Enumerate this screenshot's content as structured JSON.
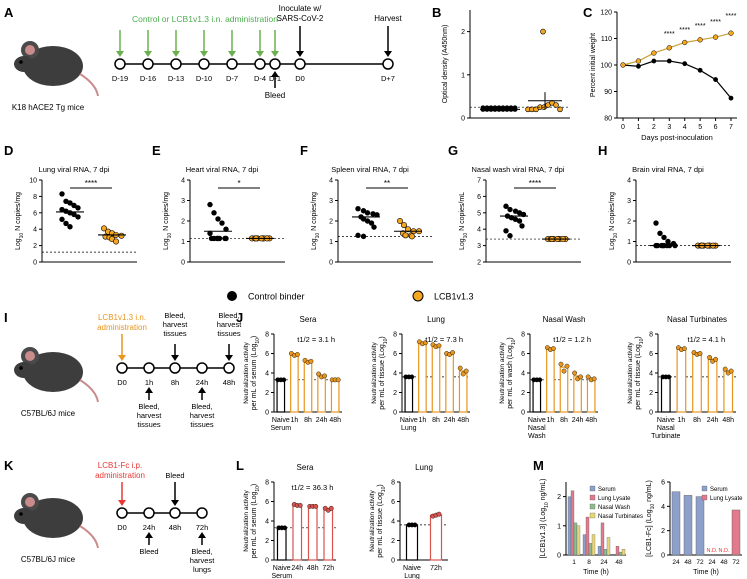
{
  "colors": {
    "black": "#000000",
    "orange": "#f5a623",
    "orange_bar": "#e8961e",
    "gold": "#c8a032",
    "green_arrow": "#6ab04c",
    "green_text": "#4caf50",
    "red_arrow": "#e53935",
    "red_bar": "#d9534f",
    "grid_gray": "#888888",
    "serum_blue": "#8da0cb",
    "lung_red": "#e07a8c",
    "nasal_green": "#8fbc8f",
    "turbinate_yellow": "#e6d77a"
  },
  "panelA": {
    "letter": "A",
    "mouse_label": "K18 hACE2 Tg mice",
    "treatment": "Control or LCB1v1.3 i.n. administration",
    "inoculate": "Inoculate w/ SARS-CoV-2",
    "inoculate_l1": "Inoculate w/",
    "inoculate_l2": "SARS-CoV-2",
    "harvest": "Harvest",
    "bleed": "Bleed",
    "days": [
      "D-19",
      "D-16",
      "D-13",
      "D-10",
      "D-7",
      "D-4",
      "D-1",
      "D0",
      "D+7"
    ]
  },
  "panelI": {
    "letter": "I",
    "mouse_label": "C57BL/6J mice",
    "treat_l1": "LCB1v1.3 i.n.",
    "treat_l2": "administration",
    "above": [
      {
        "l1": "Bleed,",
        "l2": "harvest",
        "l3": "tissues"
      },
      {
        "l1": "Bleed,",
        "l2": "harvest",
        "l3": "tissues"
      }
    ],
    "below": [
      {
        "l1": "Bleed,",
        "l2": "harvest",
        "l3": "tissues"
      },
      {
        "l1": "Bleed,",
        "l2": "harvest",
        "l3": "tissues"
      }
    ],
    "times": [
      "D0",
      "1h",
      "8h",
      "24h",
      "48h"
    ]
  },
  "panelK": {
    "letter": "K",
    "mouse_label": "C57BL/6J mice",
    "treat_l1": "LCB1-Fc i.p.",
    "treat_l2": "administration",
    "bleed_above": "Bleed",
    "bleed_below": "Bleed",
    "final_l1": "Bleed,",
    "final_l2": "harvest",
    "final_l3": "lungs",
    "times": [
      "D0",
      "24h",
      "48h",
      "72h"
    ]
  },
  "legend": {
    "control": "Control binder",
    "lcb": "LCB1v1.3"
  },
  "chart_data": [
    {
      "id": "B",
      "type": "scatter",
      "title": "",
      "ylabel": "Optical density (A450nm)",
      "ylim": [
        0,
        2.5
      ],
      "yticks": [
        "0",
        "1",
        "2"
      ],
      "groups": [
        {
          "name": "Control",
          "values": [
            0.2,
            0.2,
            0.2,
            0.2,
            0.2,
            0.2,
            0.2,
            0.2,
            0.2,
            0.2,
            0.2,
            0.2,
            0.2,
            0.2,
            0.2,
            0.2,
            0.2,
            0.2
          ]
        },
        {
          "name": "LCB1v1.3",
          "values": [
            0.2,
            0.2,
            0.2,
            0.25,
            0.25,
            0.3,
            0.35,
            0.3,
            0.2,
            2.0
          ]
        }
      ]
    },
    {
      "id": "C",
      "type": "line",
      "title": "",
      "xlabel": "Days post-inoculation",
      "ylabel": "Percent initial weight",
      "x": [
        0,
        1,
        2,
        3,
        4,
        5,
        6,
        7
      ],
      "xticks": [
        "0",
        "1",
        "2",
        "3",
        "4",
        "5",
        "6",
        "7"
      ],
      "ylim": [
        80,
        120
      ],
      "yticks": [
        "80",
        "90",
        "100",
        "110",
        "120"
      ],
      "series": [
        {
          "name": "Control binder",
          "values": [
            100,
            99.5,
            101.5,
            101.5,
            100.5,
            98,
            94.5,
            87.5
          ]
        },
        {
          "name": "LCB1v1.3",
          "values": [
            100,
            101.5,
            104.5,
            106.5,
            108.5,
            109.5,
            110.5,
            112
          ]
        }
      ],
      "annotations": [
        "****",
        "****",
        "****",
        "****",
        "****"
      ]
    },
    {
      "id": "D",
      "type": "scatter",
      "title": "Lung viral RNA, 7 dpi",
      "ylabel": "Log10 N copies/mg",
      "ylim": [
        0,
        10
      ],
      "yticks": [
        "0",
        "2",
        "4",
        "6",
        "8",
        "10"
      ],
      "lod": 1.2,
      "sig": "****",
      "groups": [
        {
          "name": "Control",
          "mean": 6.1,
          "values": [
            8.3,
            7.4,
            7.2,
            6.9,
            6.6,
            6.4,
            6.2,
            6.0,
            5.8,
            5.5,
            5.2,
            4.7,
            4.3
          ]
        },
        {
          "name": "LCB1v1.3",
          "mean": 3.3,
          "values": [
            4.1,
            3.7,
            3.5,
            3.3,
            3.2,
            3.1,
            3.0,
            2.8,
            2.5
          ]
        }
      ]
    },
    {
      "id": "E",
      "type": "scatter",
      "title": "Heart viral RNA, 7 dpi",
      "ylabel": "Log10 N copies/mg",
      "ylim": [
        0,
        4
      ],
      "yticks": [
        "0",
        "1",
        "2",
        "3",
        "4"
      ],
      "lod": 1.15,
      "sig": "*",
      "groups": [
        {
          "name": "Control",
          "mean": 1.5,
          "values": [
            2.8,
            2.4,
            2.1,
            1.9,
            1.6,
            1.4,
            1.15,
            1.15,
            1.15,
            1.15,
            1.15,
            1.15,
            1.15
          ]
        },
        {
          "name": "LCB1v1.3",
          "mean": 1.15,
          "values": [
            1.15,
            1.15,
            1.15,
            1.15,
            1.15,
            1.15,
            1.15,
            1.15,
            1.15
          ]
        }
      ]
    },
    {
      "id": "F",
      "type": "scatter",
      "title": "Spleen viral RNA, 7 dpi",
      "ylabel": "Log10 N copies/mg",
      "ylim": [
        0,
        4
      ],
      "yticks": [
        "0",
        "1",
        "2",
        "3",
        "4"
      ],
      "lod": 1.25,
      "sig": "**",
      "groups": [
        {
          "name": "Control",
          "mean": 2.2,
          "values": [
            2.6,
            2.5,
            2.4,
            2.35,
            2.3,
            2.2,
            2.1,
            2.0,
            1.9,
            1.7,
            1.3,
            1.25
          ]
        },
        {
          "name": "LCB1v1.3",
          "mean": 1.5,
          "values": [
            2.0,
            1.8,
            1.6,
            1.5,
            1.5,
            1.4,
            1.3,
            1.3,
            1.25
          ]
        }
      ]
    },
    {
      "id": "G",
      "type": "scatter",
      "title": "Nasal wash viral RNA,  7 dpi",
      "ylabel": "Log10 N copies/mL",
      "ylim": [
        2,
        7
      ],
      "yticks": [
        "2",
        "3",
        "4",
        "5",
        "6",
        "7"
      ],
      "lod": 3.4,
      "sig": "****",
      "groups": [
        {
          "name": "Control",
          "mean": 4.8,
          "values": [
            5.4,
            5.2,
            5.1,
            5.0,
            4.9,
            4.8,
            4.7,
            4.6,
            4.5,
            4.2,
            3.9,
            3.6
          ]
        },
        {
          "name": "LCB1v1.3",
          "mean": 3.4,
          "values": [
            3.4,
            3.4,
            3.4,
            3.4,
            3.4,
            3.4,
            3.4,
            3.4,
            3.4
          ]
        }
      ]
    },
    {
      "id": "H",
      "type": "scatter",
      "title": "Brain viral RNA,  7 dpi",
      "ylabel": "Log10 N copies/mg",
      "ylim": [
        0,
        4
      ],
      "yticks": [
        "0",
        "1",
        "2",
        "3",
        "4"
      ],
      "lod": 0.8,
      "sig": "",
      "groups": [
        {
          "name": "Control",
          "mean": 0.8,
          "values": [
            1.9,
            1.4,
            1.2,
            1.0,
            0.9,
            0.8,
            0.8,
            0.8,
            0.8,
            0.8,
            0.8,
            0.8,
            0.8
          ]
        },
        {
          "name": "LCB1v1.3",
          "mean": 0.8,
          "values": [
            0.8,
            0.8,
            0.8,
            0.8,
            0.8,
            0.8,
            0.8,
            0.8,
            0.8
          ]
        }
      ]
    },
    {
      "id": "J1",
      "type": "bar",
      "title": "Sera",
      "ylabel": "Neutralization activity",
      "ylabel2": "per mL of serum (Log10)",
      "categories": [
        "Naive Serum",
        "1h",
        "8h",
        "24h",
        "48h"
      ],
      "values": [
        3.3,
        5.9,
        5.2,
        3.7,
        3.3
      ],
      "points": [
        [
          3.3,
          3.3,
          3.3
        ],
        [
          6.0,
          5.8,
          5.9
        ],
        [
          5.3,
          5.1,
          5.2
        ],
        [
          3.9,
          3.6,
          3.7
        ],
        [
          3.3,
          3.3,
          3.3
        ]
      ],
      "ylim": [
        0,
        8
      ],
      "yticks": [
        "0",
        "2",
        "4",
        "6",
        "8"
      ],
      "lod": 3.3,
      "half_life": "t1/2 = 3.1 h"
    },
    {
      "id": "J2",
      "type": "bar",
      "title": "Lung",
      "ylabel": "Neutralization activity",
      "ylabel2": "per mL of tissue (Log10)",
      "categories": [
        "Naive Lung",
        "1h",
        "8h",
        "24h",
        "48h"
      ],
      "values": [
        3.6,
        7.1,
        6.8,
        6.0,
        4.2
      ],
      "points": [
        [
          3.6,
          3.6,
          3.6
        ],
        [
          7.2,
          7.0,
          7.1
        ],
        [
          6.9,
          6.7,
          6.8
        ],
        [
          6.0,
          5.9,
          6.1
        ],
        [
          4.5,
          3.9,
          4.2
        ]
      ],
      "ylim": [
        0,
        8
      ],
      "yticks": [
        "0",
        "2",
        "4",
        "6",
        "8"
      ],
      "lod": 3.6,
      "half_life": "t1/2 = 7.3 h"
    },
    {
      "id": "J3",
      "type": "bar",
      "title": "Nasal Wash",
      "ylabel": "Neutralization activity",
      "ylabel2": "per mL of wash (Log10)",
      "categories": [
        "Naive Nasal Wash",
        "1h",
        "8h",
        "24h",
        "48h"
      ],
      "values": [
        3.3,
        6.5,
        4.6,
        3.7,
        3.4
      ],
      "points": [
        [
          3.3,
          3.3,
          3.3
        ],
        [
          6.6,
          6.4,
          6.5
        ],
        [
          4.9,
          4.2,
          4.7
        ],
        [
          4.0,
          3.4,
          3.6
        ],
        [
          3.6,
          3.3,
          3.4
        ]
      ],
      "ylim": [
        0,
        8
      ],
      "yticks": [
        "0",
        "2",
        "4",
        "6",
        "8"
      ],
      "lod": 3.3,
      "half_life": "t1/2 = 1.2 h"
    },
    {
      "id": "J4",
      "type": "bar",
      "title": "Nasal Turbinates",
      "ylabel": "Neutralization activity",
      "ylabel2": "per mL of tissue (Log10)",
      "categories": [
        "Naive Nasal Turbinate",
        "1h",
        "8h",
        "24h",
        "48h"
      ],
      "values": [
        3.6,
        6.5,
        6.0,
        5.4,
        4.2
      ],
      "points": [
        [
          3.6,
          3.6,
          3.6
        ],
        [
          6.6,
          6.4,
          6.5
        ],
        [
          6.1,
          5.9,
          6.0
        ],
        [
          5.6,
          5.2,
          5.4
        ],
        [
          4.4,
          4.0,
          4.2
        ]
      ],
      "ylim": [
        0,
        8
      ],
      "yticks": [
        "0",
        "2",
        "4",
        "6",
        "8"
      ],
      "lod": 3.6,
      "half_life": "t1/2 = 4.1 h"
    },
    {
      "id": "L1",
      "type": "bar",
      "title": "Sera",
      "ylabel": "Neutralization activity",
      "ylabel2": "per mL of serum (Log10)",
      "categories": [
        "Naive Serum",
        "24h",
        "48h",
        "72h"
      ],
      "values": [
        3.3,
        5.6,
        5.5,
        5.2
      ],
      "points": [
        [
          3.3,
          3.3,
          3.3
        ],
        [
          5.7,
          5.6,
          5.6
        ],
        [
          5.5,
          5.5,
          5.5
        ],
        [
          5.3,
          5.1,
          5.3
        ]
      ],
      "ylim": [
        0,
        8
      ],
      "yticks": [
        "0",
        "2",
        "4",
        "6",
        "8"
      ],
      "lod": 3.3,
      "half_life": "t1/2 = 36.3 h"
    },
    {
      "id": "L2",
      "type": "bar",
      "title": "Lung",
      "ylabel": "Neutralization activity",
      "ylabel2": "per mL of tissue (Log10)",
      "categories": [
        "Naive Lung",
        "72h"
      ],
      "values": [
        3.6,
        4.6
      ],
      "points": [
        [
          3.6,
          3.6,
          3.6
        ],
        [
          4.5,
          4.6,
          4.7
        ]
      ],
      "ylim": [
        0,
        8
      ],
      "yticks": [
        "0",
        "2",
        "4",
        "6",
        "8"
      ],
      "lod": 3.6,
      "half_life": ""
    },
    {
      "id": "M1",
      "type": "bar",
      "title": "",
      "xlabel": "Time (h)",
      "ylabel": "[LCB1v1.3] (Log10 ng/mL)",
      "categories": [
        "1",
        "8",
        "24",
        "48"
      ],
      "series": [
        {
          "name": "Serum",
          "values": [
            2.0,
            0.7,
            0.3,
            0.0
          ]
        },
        {
          "name": "Lung Lysate",
          "values": [
            2.2,
            1.3,
            1.1,
            0.3
          ]
        },
        {
          "name": "Nasal Wash",
          "values": [
            1.1,
            0.4,
            0.2,
            0.1
          ]
        },
        {
          "name": "Nasal Turbinates",
          "values": [
            1.0,
            0.7,
            0.6,
            0.2
          ]
        }
      ],
      "ylim": [
        0,
        2.5
      ],
      "yticks": [
        "0",
        "1",
        "2"
      ]
    },
    {
      "id": "M2",
      "type": "bar",
      "title": "",
      "xlabel": "Time (h)",
      "ylabel": "[LCB1-Fc] (Log10 ng/mL)",
      "categories": [
        "24",
        "48",
        "72",
        "24",
        "48",
        "72"
      ],
      "series": [
        {
          "name": "Serum",
          "values": [
            5.2,
            4.9,
            4.8,
            null,
            null,
            null
          ]
        },
        {
          "name": "Lung Lysate",
          "values": [
            null,
            null,
            null,
            null,
            null,
            3.7
          ]
        }
      ],
      "nd_labels": [
        "N.D.",
        "N.D."
      ],
      "ylim": [
        0,
        6
      ],
      "yticks": [
        "0",
        "2",
        "4",
        "6"
      ]
    }
  ]
}
